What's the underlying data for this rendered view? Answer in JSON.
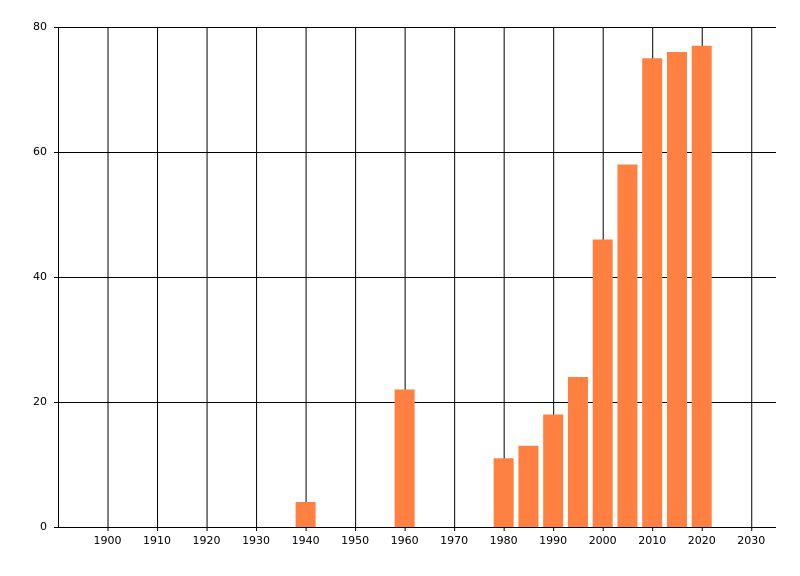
{
  "chart_data": {
    "type": "bar",
    "x": [
      1940,
      1960,
      1980,
      1985,
      1990,
      1995,
      2000,
      2005,
      2010,
      2015,
      2020
    ],
    "values": [
      4,
      22,
      11,
      13,
      18,
      24,
      46,
      58,
      75,
      76,
      77
    ],
    "color": "#ff8040",
    "xlim": [
      1890,
      2035
    ],
    "xticks": [
      1900,
      1910,
      1920,
      1930,
      1940,
      1950,
      1960,
      1970,
      1980,
      1990,
      2000,
      2010,
      2020,
      2030
    ],
    "ylim": [
      0,
      80
    ],
    "yticks": [
      0,
      20,
      40,
      60,
      80
    ],
    "grid": true
  }
}
